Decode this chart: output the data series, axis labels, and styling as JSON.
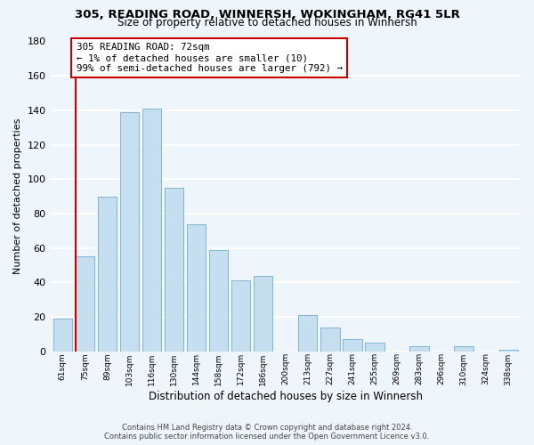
{
  "title": "305, READING ROAD, WINNERSH, WOKINGHAM, RG41 5LR",
  "subtitle": "Size of property relative to detached houses in Winnersh",
  "xlabel": "Distribution of detached houses by size in Winnersh",
  "ylabel": "Number of detached properties",
  "bar_labels": [
    "61sqm",
    "75sqm",
    "89sqm",
    "103sqm",
    "116sqm",
    "130sqm",
    "144sqm",
    "158sqm",
    "172sqm",
    "186sqm",
    "200sqm",
    "213sqm",
    "227sqm",
    "241sqm",
    "255sqm",
    "269sqm",
    "283sqm",
    "296sqm",
    "310sqm",
    "324sqm",
    "338sqm"
  ],
  "bar_values": [
    19,
    55,
    90,
    139,
    141,
    95,
    74,
    59,
    41,
    44,
    0,
    21,
    14,
    7,
    5,
    0,
    3,
    0,
    3,
    0,
    1
  ],
  "bar_color": "#c5dff0",
  "bar_edge_color": "#7fb5d5",
  "annotation_title": "305 READING ROAD: 72sqm",
  "annotation_line1": "← 1% of detached houses are smaller (10)",
  "annotation_line2": "99% of semi-detached houses are larger (792) →",
  "annotation_box_facecolor": "#ffffff",
  "annotation_box_edgecolor": "#cc0000",
  "vline_color": "#cc0000",
  "vline_x": 0.57,
  "ylim": [
    0,
    180
  ],
  "yticks": [
    0,
    20,
    40,
    60,
    80,
    100,
    120,
    140,
    160,
    180
  ],
  "bg_color": "#eef5fb",
  "grid_color": "#ffffff",
  "footer1": "Contains HM Land Registry data © Crown copyright and database right 2024.",
  "footer2": "Contains public sector information licensed under the Open Government Licence v3.0."
}
